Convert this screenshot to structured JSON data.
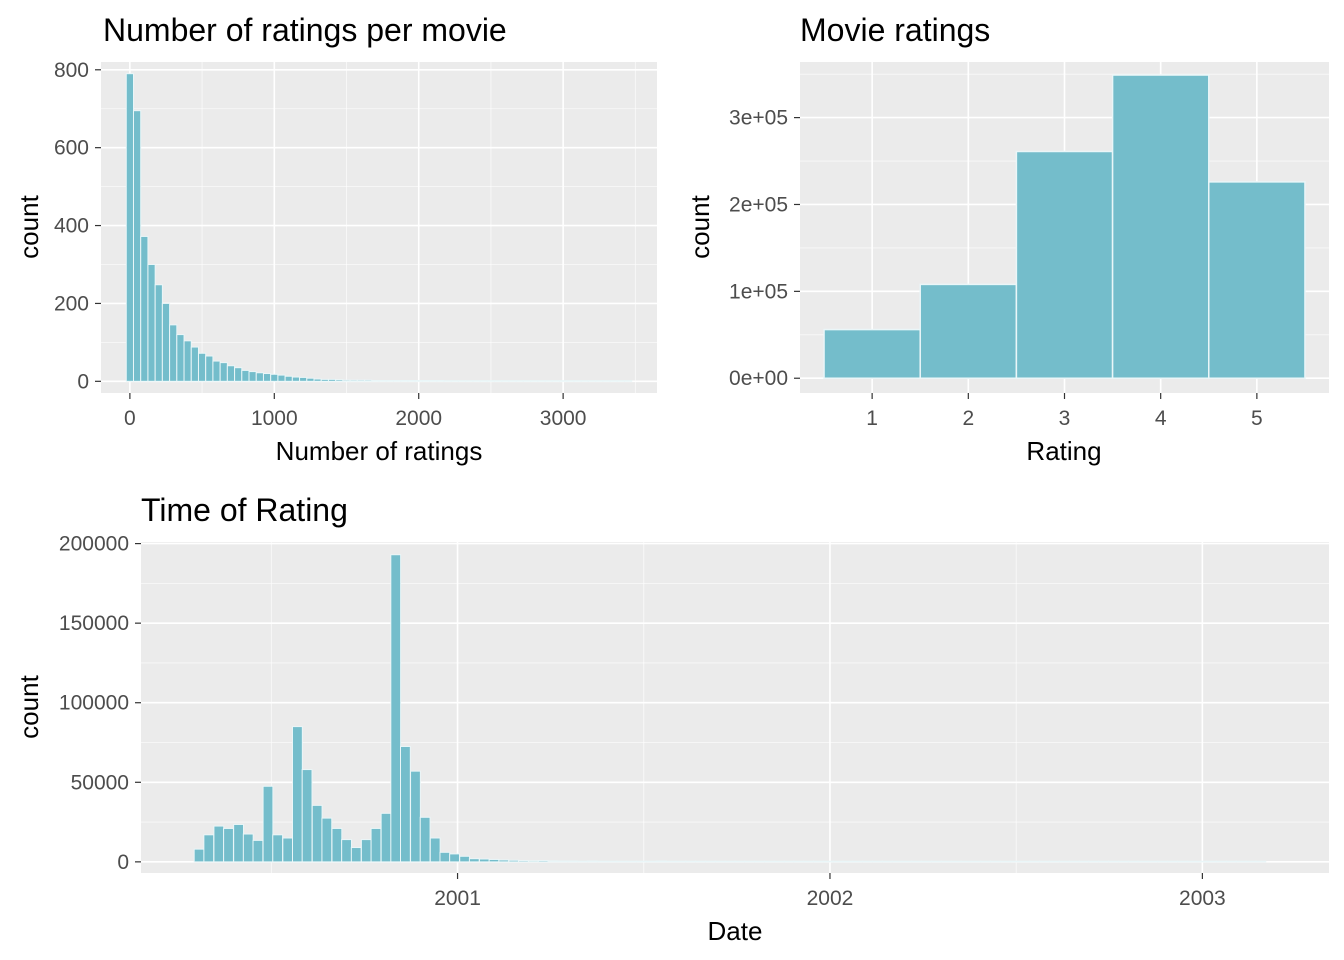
{
  "colors": {
    "bar_fill": "#74BDCB",
    "bar_stroke": "#EAF6F8",
    "panel_background": "#EBEBEB",
    "grid_major": "#FFFFFF",
    "tick_text": "#4D4D4D"
  },
  "chart_data": [
    {
      "type": "bar",
      "title": "Number of ratings per movie",
      "xlabel": "Number of ratings",
      "ylabel": "count",
      "xlim": [
        -200,
        3650
      ],
      "ylim": [
        -30,
        820
      ],
      "x_ticks": [
        0,
        1000,
        2000,
        3000
      ],
      "x_tick_labels": [
        "0",
        "1000",
        "2000",
        "3000"
      ],
      "y_ticks": [
        0,
        200,
        400,
        600,
        800
      ],
      "y_tick_labels": [
        "0",
        "200",
        "400",
        "600",
        "800"
      ],
      "grid": true,
      "bin_width": 50,
      "bin_centers": [
        0,
        50,
        100,
        150,
        200,
        250,
        300,
        350,
        400,
        450,
        500,
        550,
        600,
        650,
        700,
        750,
        800,
        850,
        900,
        950,
        1000,
        1050,
        1100,
        1150,
        1200,
        1250,
        1300,
        1350,
        1400,
        1450,
        1500,
        1550,
        1600,
        1650,
        1700,
        1750,
        1800,
        1850,
        1900,
        1950,
        2000,
        2050,
        2100,
        2150,
        2200,
        2250,
        2300,
        2350,
        2400,
        2450,
        2500,
        2550,
        2600,
        2650,
        2700,
        2750,
        2800,
        2850,
        2900,
        2950,
        3000,
        3050,
        3100,
        3150,
        3200,
        3250,
        3300,
        3350,
        3400,
        3450
      ],
      "values": [
        790,
        695,
        372,
        300,
        248,
        200,
        145,
        120,
        104,
        88,
        72,
        65,
        52,
        48,
        40,
        35,
        28,
        25,
        22,
        20,
        18,
        16,
        13,
        11,
        10,
        8,
        6,
        5,
        5,
        4,
        3,
        3,
        3,
        3,
        2,
        2,
        2,
        2,
        2,
        2,
        2,
        2,
        2,
        2,
        1,
        1,
        1,
        1,
        1,
        1,
        1,
        1,
        1,
        1,
        1,
        1,
        1,
        1,
        1,
        1,
        1,
        1,
        1,
        1,
        1,
        1,
        1,
        1,
        1,
        1
      ]
    },
    {
      "type": "bar",
      "title": "Movie ratings",
      "xlabel": "Rating",
      "ylabel": "count",
      "xlim": [
        0.25,
        5.75
      ],
      "ylim": [
        -17000,
        364000
      ],
      "categories": [
        "1",
        "2",
        "3",
        "4",
        "5"
      ],
      "x": [
        1,
        2,
        3,
        4,
        5
      ],
      "values": [
        56000,
        108000,
        261000,
        349000,
        226000
      ],
      "y_ticks": [
        0,
        100000,
        200000,
        300000
      ],
      "y_tick_labels": [
        "0e+00",
        "1e+05",
        "2e+05",
        "3e+05"
      ],
      "grid": true
    },
    {
      "type": "bar",
      "title": "Time of Rating",
      "xlabel": "Date",
      "ylabel": "count",
      "x_unit": "year",
      "xlim": [
        2000.15,
        2003.34
      ],
      "ylim": [
        -7000,
        201000
      ],
      "x_ticks": [
        2001,
        2002,
        2003
      ],
      "x_tick_labels": [
        "2001",
        "2002",
        "2003"
      ],
      "y_ticks": [
        0,
        50000,
        100000,
        150000,
        200000
      ],
      "y_tick_labels": [
        "0",
        "50000",
        "100000",
        "150000",
        "200000"
      ],
      "grid": true,
      "bin_width_years": 0.02638,
      "bin_centers": [
        2000.306,
        2000.332,
        2000.359,
        2000.385,
        2000.412,
        2000.438,
        2000.464,
        2000.491,
        2000.517,
        2000.544,
        2000.57,
        2000.596,
        2000.623,
        2000.649,
        2000.676,
        2000.702,
        2000.728,
        2000.755,
        2000.781,
        2000.808,
        2000.834,
        2000.86,
        2000.887,
        2000.913,
        2000.94,
        2000.966,
        2000.992,
        2001.019,
        2001.045,
        2001.072,
        2001.098,
        2001.124,
        2001.151,
        2001.177,
        2001.204,
        2001.23,
        2001.256,
        2001.283,
        2001.309,
        2001.336,
        2001.362,
        2001.388,
        2001.415,
        2001.441,
        2001.468,
        2001.494,
        2001.52,
        2001.547,
        2001.573,
        2001.6,
        2001.626,
        2001.652,
        2001.679,
        2001.705,
        2001.732,
        2001.758,
        2001.784,
        2001.811,
        2001.837,
        2001.864,
        2001.89,
        2001.916,
        2001.943,
        2001.969,
        2001.996,
        2002.022,
        2002.048,
        2002.075,
        2002.101,
        2002.128,
        2002.154,
        2002.18,
        2002.207,
        2002.233,
        2002.26,
        2002.286,
        2002.312,
        2002.339,
        2002.365,
        2002.392,
        2002.418,
        2002.444,
        2002.471,
        2002.497,
        2002.524,
        2002.55,
        2002.576,
        2002.603,
        2002.629,
        2002.656,
        2002.682,
        2002.708,
        2002.735,
        2002.761,
        2002.788,
        2002.814,
        2002.84,
        2002.867,
        2002.893,
        2002.92,
        2002.946,
        2002.972,
        2002.999,
        2003.025,
        2003.052,
        2003.078,
        2003.104,
        2003.131,
        2003.157
      ],
      "values": [
        8000,
        17000,
        22500,
        21000,
        23500,
        17500,
        13500,
        47500,
        17000,
        15000,
        85000,
        58000,
        35500,
        27500,
        21000,
        14000,
        9000,
        14000,
        21000,
        30500,
        193000,
        72500,
        57000,
        28000,
        15000,
        6000,
        5000,
        3500,
        2000,
        1800,
        1500,
        1200,
        1000,
        800,
        700,
        800,
        600,
        500,
        500,
        400,
        500,
        400,
        400,
        300,
        300,
        300,
        250,
        500,
        250,
        250,
        200,
        200,
        200,
        180,
        160,
        150,
        140,
        130,
        120,
        110,
        100,
        100,
        90,
        90,
        80,
        80,
        70,
        70,
        60,
        60,
        60,
        50,
        50,
        50,
        50,
        50,
        50,
        50,
        50,
        50,
        40,
        40,
        40,
        40,
        40,
        40,
        40,
        40,
        40,
        40,
        40,
        40,
        40,
        40,
        40,
        40,
        40,
        30,
        30,
        30,
        30,
        30,
        30,
        30,
        30,
        30,
        30,
        30,
        30
      ]
    }
  ]
}
